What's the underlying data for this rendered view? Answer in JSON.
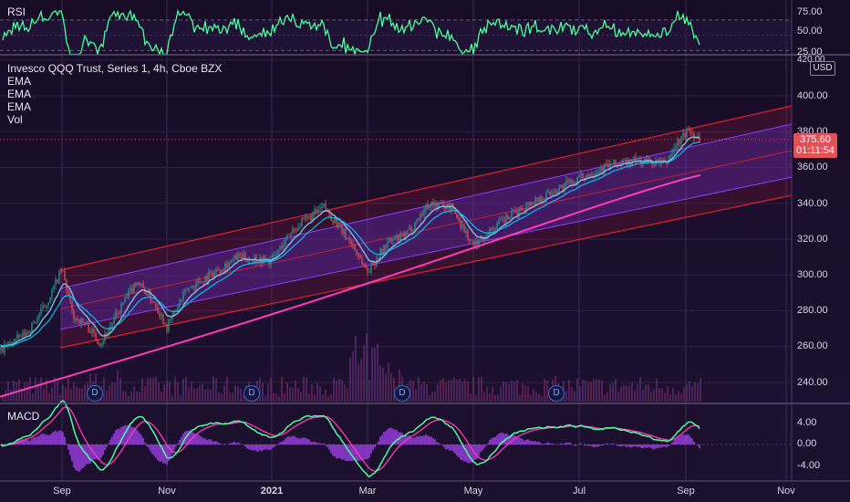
{
  "rsi": {
    "title": "RSI",
    "ticks": [
      "75.00",
      "50.00",
      "25.00"
    ],
    "tick_values": [
      75,
      50,
      25
    ],
    "ylim": [
      22,
      82
    ],
    "levels": [
      70,
      50,
      30
    ]
  },
  "main": {
    "title": "Invesco QQQ Trust, Series 1, 4h, Cboe BZX",
    "indicators": [
      "EMA",
      "EMA",
      "EMA",
      "Vol"
    ],
    "currency": "USD",
    "current_price": "375.60",
    "countdown": "01:11:54",
    "top_tick": "420.00",
    "ticks": [
      "400.00",
      "380.00",
      "360.00",
      "340.00",
      "320.00",
      "300.00",
      "280.00",
      "260.00",
      "240.00"
    ],
    "tick_values": [
      400,
      380,
      360,
      340,
      320,
      300,
      280,
      260,
      240
    ],
    "dividend_marker": "D"
  },
  "macd": {
    "title": "MACD",
    "ticks": [
      "4.00",
      "0.00",
      "-4.00"
    ],
    "tick_values": [
      4,
      0,
      -4
    ],
    "ylim": [
      -6.5,
      7
    ]
  },
  "xaxis": {
    "labels": [
      "Sep",
      "Nov",
      "2021",
      "Mar",
      "May",
      "Jul",
      "Sep",
      "Nov"
    ]
  },
  "colors": {
    "background": "#1b0f2d",
    "candle_up": "#26a69a",
    "candle_down": "#ef5350",
    "ema_fast": "#00d0ff",
    "ema_mid": "#7ec8e3",
    "ema_slow": "#ff3db4",
    "rsi": "#4dff9a",
    "macd": "#4dff9a",
    "signal": "#ff3db4",
    "histogram": "#b046ff",
    "channel_outer": "#e0232a",
    "channel_inner": "#8a3cff"
  },
  "chart_data": {
    "type": "line",
    "symbol": "QQQ",
    "interval": "4h",
    "ylim": [
      225,
      430
    ],
    "close_anchors": [
      {
        "x": "Aug 1",
        "close": 258
      },
      {
        "x": "Aug 15",
        "close": 268
      },
      {
        "x": "Aug 25",
        "close": 283
      },
      {
        "x": "Sep 2",
        "close": 303
      },
      {
        "x": "Sep 8",
        "close": 277
      },
      {
        "x": "Sep 15",
        "close": 272
      },
      {
        "x": "Sep 22",
        "close": 262
      },
      {
        "x": "Sep 29",
        "close": 275
      },
      {
        "x": "Oct 12",
        "close": 297
      },
      {
        "x": "Oct 22",
        "close": 284
      },
      {
        "x": "Oct 30",
        "close": 271
      },
      {
        "x": "Nov 12",
        "close": 292
      },
      {
        "x": "Nov 30",
        "close": 300
      },
      {
        "x": "Dec 18",
        "close": 310
      },
      {
        "x": "Jan 5",
        "close": 308
      },
      {
        "x": "Jan 20",
        "close": 325
      },
      {
        "x": "Feb 12",
        "close": 338
      },
      {
        "x": "Feb 25",
        "close": 318
      },
      {
        "x": "Mar 4",
        "close": 302
      },
      {
        "x": "Mar 20",
        "close": 318
      },
      {
        "x": "Apr 1",
        "close": 322
      },
      {
        "x": "Apr 16",
        "close": 340
      },
      {
        "x": "Apr 29",
        "close": 338
      },
      {
        "x": "May 12",
        "close": 316
      },
      {
        "x": "May 20",
        "close": 326
      },
      {
        "x": "Jun 10",
        "close": 340
      },
      {
        "x": "Jul 1",
        "close": 354
      },
      {
        "x": "Jul 15",
        "close": 361
      },
      {
        "x": "Aug 1",
        "close": 364
      },
      {
        "x": "Aug 18",
        "close": 362
      },
      {
        "x": "Aug 25",
        "close": 372
      },
      {
        "x": "Sep 3",
        "close": 381
      },
      {
        "x": "Sep 9",
        "close": 375.6
      }
    ],
    "rsi_range": [
      25,
      82
    ],
    "macd_range": [
      -5.5,
      6
    ],
    "channel": {
      "outer_upper": {
        "start": [
          "Sep 2",
          304
        ],
        "end": [
          "Sep 9",
          395
        ]
      },
      "outer_lower": {
        "start": [
          "Sep 2",
          267
        ],
        "end": [
          "Sep 9",
          350
        ]
      }
    }
  }
}
